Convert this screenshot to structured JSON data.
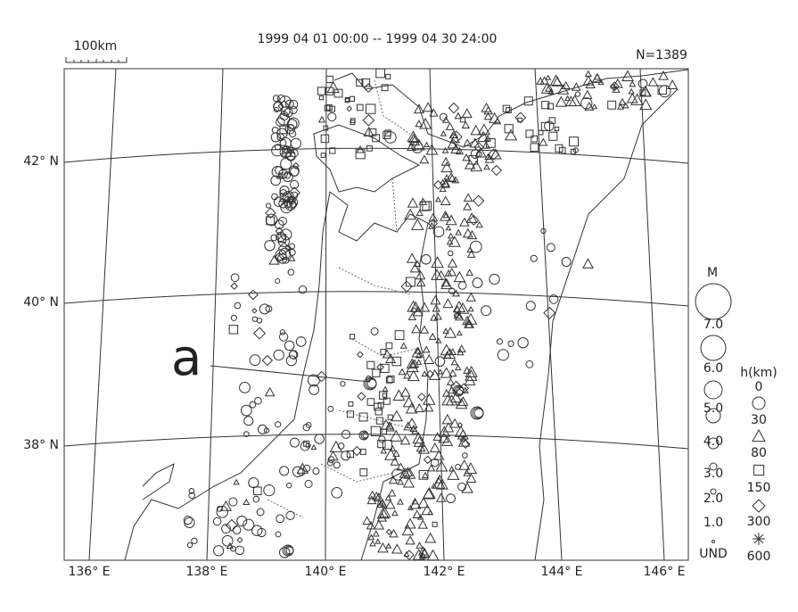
{
  "header": {
    "period": "1999 04 01 00:00 -- 1999 04 30 24:00",
    "count": "N=1389",
    "scale_bar": "100km"
  },
  "map": {
    "lat_labels": [
      "42° N",
      "40° N",
      "38° N"
    ],
    "lon_labels": [
      "136° E",
      "138° E",
      "140° E",
      "142° E",
      "144° E",
      "146° E"
    ],
    "annotation": "a"
  },
  "legend": {
    "magnitude_title": "M",
    "magnitudes": [
      "7.0",
      "6.0",
      "5.0",
      "4.0",
      "3.0",
      "2.0",
      "1.0",
      "UND"
    ],
    "depth_title": "h(km)",
    "depths": [
      "0",
      "30",
      "80",
      "150",
      "300",
      "600"
    ]
  }
}
